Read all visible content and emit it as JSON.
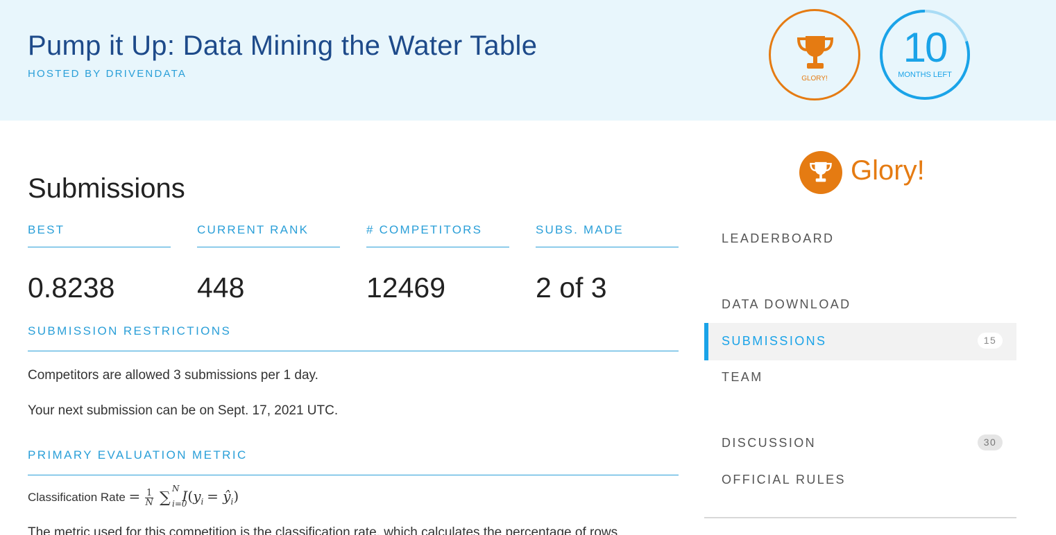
{
  "header": {
    "title": "Pump it Up: Data Mining the Water Table",
    "hosted_by": "HOSTED BY DRIVENDATA",
    "glory_badge_label": "GLORY!",
    "time_left_number": "10",
    "time_left_label": "MONTHS LEFT",
    "time_elapsed_fraction": 0.2
  },
  "main": {
    "page_title": "Submissions",
    "stats": [
      {
        "label": "BEST",
        "value": "0.8238"
      },
      {
        "label": "CURRENT RANK",
        "value": "448"
      },
      {
        "label": "# COMPETITORS",
        "value": "12469"
      },
      {
        "label": "SUBS. MADE",
        "value": "2 of 3"
      }
    ],
    "restrictions": {
      "heading": "SUBMISSION RESTRICTIONS",
      "allowed": "Competitors are allowed 3 submissions per 1 day.",
      "next": "Your next submission can be on Sept. 17, 2021 UTC."
    },
    "metric": {
      "heading": "PRIMARY EVALUATION METRIC",
      "name": "Classification Rate",
      "description": "The metric used for this competition is the classification rate, which calculates the percentage of rows"
    }
  },
  "sidebar": {
    "prize": "Glory!",
    "nav": [
      {
        "label": "LEADERBOARD",
        "count": ""
      },
      {
        "label": "DATA DOWNLOAD",
        "count": ""
      },
      {
        "label": "SUBMISSIONS",
        "count": "15",
        "active": true
      },
      {
        "label": "TEAM",
        "count": ""
      },
      {
        "label": "DISCUSSION",
        "count": "30"
      },
      {
        "label": "OFFICIAL RULES",
        "count": ""
      }
    ]
  },
  "colors": {
    "brand_blue": "#2a9fd8",
    "accent_orange": "#e57b12",
    "banner_bg": "#e8f6fc",
    "title_navy": "#1d4a8a"
  }
}
